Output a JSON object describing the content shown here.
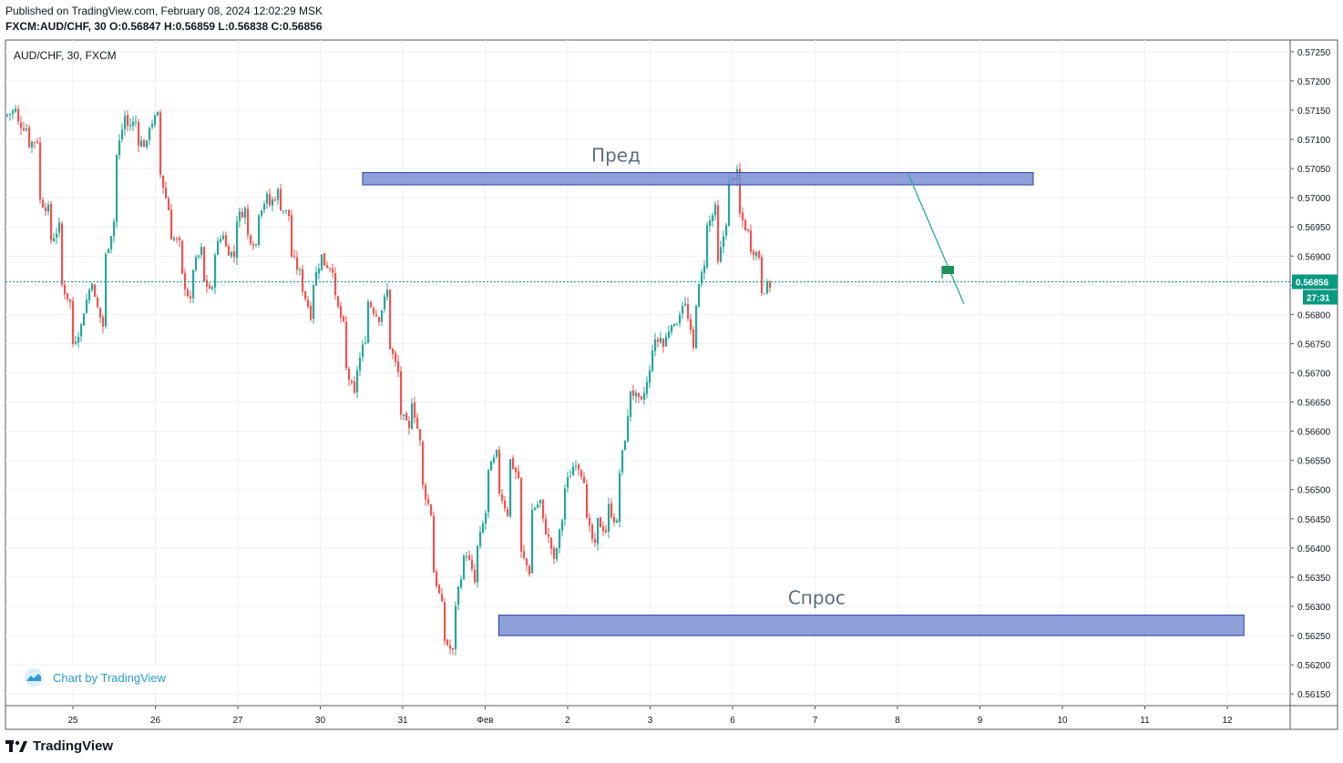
{
  "header": {
    "published": "Published on TradingView.com, February 08, 2024 12:02:29 MSK",
    "ohlc": "FXCM:AUD/CHF, 30  O:0.56847  H:0.56859  L:0.56838  C:0.56856"
  },
  "chart_data": {
    "type": "candlestick",
    "title": "AUD/CHF, 30, FXCM",
    "symbol": "FXCM:AUD/CHF",
    "interval": "30",
    "ylim": [
      0.5613,
      0.5727
    ],
    "y_ticks": [
      "0.57250",
      "0.57200",
      "0.57150",
      "0.57100",
      "0.57050",
      "0.57000",
      "0.56950",
      "0.56900",
      "0.56850",
      "0.56800",
      "0.56750",
      "0.56700",
      "0.56650",
      "0.56600",
      "0.56550",
      "0.56500",
      "0.56450",
      "0.56400",
      "0.56350",
      "0.56300",
      "0.56250",
      "0.56200",
      "0.56150"
    ],
    "x_ticks": [
      "25",
      "26",
      "27",
      "30",
      "31",
      "Фев",
      "2",
      "3",
      "6",
      "7",
      "8",
      "9",
      "10",
      "11",
      "12"
    ],
    "last_price": "0.56856",
    "countdown": "27:31",
    "grid": true,
    "colors": {
      "up": "#26a69a",
      "down": "#ef5350",
      "zone_fill": "#7a8fd4",
      "zone_border": "#2a3f9e",
      "trendline": "#26a69a",
      "last_price": "#089981"
    },
    "price_path": [
      [
        0.5714,
        0.5715
      ],
      [
        0.5713,
        0.5712
      ],
      [
        0.5709,
        0.571
      ],
      [
        0.57,
        0.5698
      ],
      [
        0.5692,
        0.5695
      ],
      [
        0.5686,
        0.5682
      ],
      [
        0.5674,
        0.5678
      ],
      [
        0.5679,
        0.5686
      ],
      [
        0.5684,
        0.5678
      ],
      [
        0.5688,
        0.5696
      ],
      [
        0.5705,
        0.5714
      ],
      [
        0.5712,
        0.5713
      ],
      [
        0.571,
        0.5709
      ],
      [
        0.5712,
        0.5714
      ],
      [
        0.5706,
        0.5698
      ],
      [
        0.5694,
        0.5692
      ],
      [
        0.5688,
        0.5682
      ],
      [
        0.5687,
        0.5691
      ],
      [
        0.5686,
        0.5684
      ],
      [
        0.569,
        0.5694
      ],
      [
        0.5692,
        0.569
      ],
      [
        0.5696,
        0.5698
      ],
      [
        0.5694,
        0.5692
      ],
      [
        0.5697,
        0.57
      ],
      [
        0.5698,
        0.5701
      ],
      [
        0.5699,
        0.5697
      ],
      [
        0.5691,
        0.5687
      ],
      [
        0.5686,
        0.568
      ],
      [
        0.5684,
        0.569
      ],
      [
        0.5689,
        0.5688
      ],
      [
        0.5684,
        0.5678
      ],
      [
        0.5672,
        0.5666
      ],
      [
        0.5669,
        0.5676
      ],
      [
        0.5683,
        0.568
      ],
      [
        0.5678,
        0.5684
      ],
      [
        0.5676,
        0.567
      ],
      [
        0.5664,
        0.566
      ],
      [
        0.5668,
        0.5658
      ],
      [
        0.5652,
        0.5646
      ],
      [
        0.5638,
        0.563
      ],
      [
        0.5625,
        0.5622
      ],
      [
        0.5628,
        0.5638
      ],
      [
        0.5641,
        0.5634
      ],
      [
        0.5638,
        0.5646
      ],
      [
        0.5652,
        0.5656
      ],
      [
        0.5651,
        0.5646
      ],
      [
        0.5656,
        0.5652
      ],
      [
        0.564,
        0.5636
      ],
      [
        0.5646,
        0.5648
      ],
      [
        0.5646,
        0.564
      ],
      [
        0.5635,
        0.5645
      ],
      [
        0.5649,
        0.5654
      ],
      [
        0.5656,
        0.5652
      ],
      [
        0.5646,
        0.564
      ],
      [
        0.5645,
        0.5643
      ],
      [
        0.5648,
        0.5644
      ],
      [
        0.565,
        0.5662
      ],
      [
        0.5668,
        0.5665
      ],
      [
        0.5663,
        0.567
      ],
      [
        0.5674,
        0.5676
      ],
      [
        0.5673,
        0.5679
      ],
      [
        0.5676,
        0.5682
      ],
      [
        0.5684,
        0.5674
      ],
      [
        0.568,
        0.5689
      ],
      [
        0.5694,
        0.5698
      ],
      [
        0.5686,
        0.5696
      ],
      [
        0.5702,
        0.5704
      ],
      [
        0.5698,
        0.5694
      ],
      [
        0.5692,
        0.569
      ],
      [
        0.5684,
        0.5685
      ]
    ],
    "zones": [
      {
        "label": "Пред",
        "top": 0.57043,
        "bottom": 0.57022,
        "x_start": 0.278,
        "x_end": 0.8
      },
      {
        "label": "Спрос",
        "top": 0.56285,
        "bottom": 0.5625,
        "x_start": 0.384,
        "x_end": 0.964
      }
    ],
    "trendline": {
      "from": [
        0.704,
        0.5704
      ],
      "to": [
        0.744,
        0.5684
      ]
    },
    "annotations": [
      "Пред",
      "Спрос"
    ]
  },
  "badge": {
    "label": "Chart by TradingView"
  },
  "footer": {
    "brand": "TradingView"
  }
}
